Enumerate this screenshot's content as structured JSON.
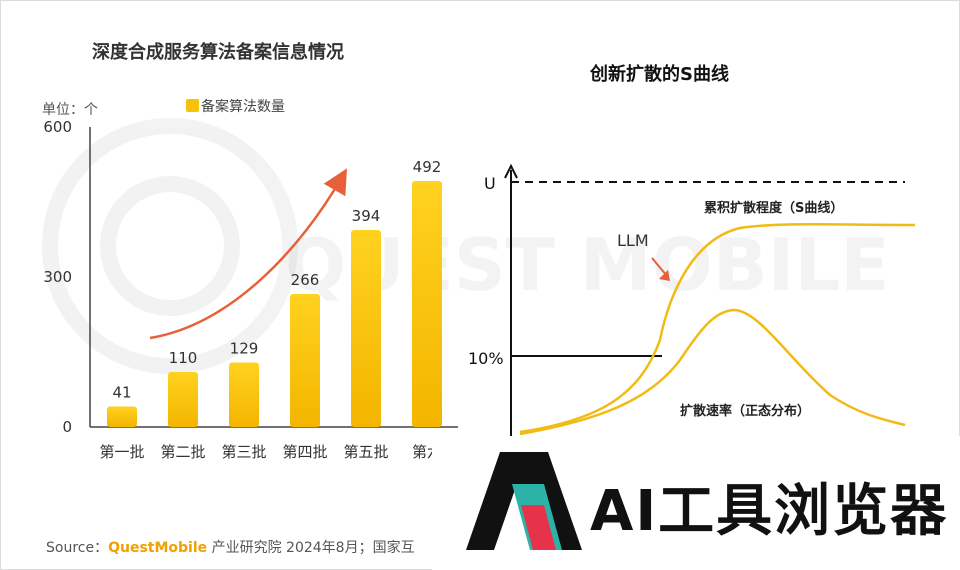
{
  "left_chart": {
    "title": "深度合成服务算法备案信息情况",
    "unit_label": "单位：个",
    "legend_label": "备案算法数量"
  },
  "right_chart": {
    "title": "创新扩散的S曲线",
    "u_label": "U",
    "ten_percent_label": "10%",
    "llm_label": "LLM",
    "curve_label_s": "累积扩散程度（S曲线）",
    "curve_label_bell": "扩散速率（正态分布）"
  },
  "watermark": "QUEST MOBILE",
  "footer": {
    "source_prefix": "Source：",
    "brand": "QuestMobile",
    "rest": " 产业研究院 2024年8月；国家互"
  },
  "logo": {
    "text": "AI工具浏览器"
  },
  "colors": {
    "bar": "#f6c30a",
    "arrow": "#e8603a",
    "curve": "#f2bb14",
    "logo_teal": "#2ab3a6",
    "logo_red": "#e6324b"
  },
  "chart_data": [
    {
      "type": "bar",
      "title": "深度合成服务算法备案信息情况",
      "categories": [
        "第一批",
        "第二批",
        "第三批",
        "第四批",
        "第五批",
        "第六"
      ],
      "series": [
        {
          "name": "备案算法数量",
          "values": [
            41,
            110,
            129,
            266,
            394,
            492
          ]
        }
      ],
      "ylim": [
        0,
        600
      ],
      "yticks": [
        0,
        300,
        600
      ],
      "ylabel": "单位：个",
      "xlabel": ""
    },
    {
      "type": "line",
      "title": "创新扩散的S曲线",
      "y_reference_labels": [
        "U",
        "10%"
      ],
      "series": [
        {
          "name": "累积扩散程度（S曲线）"
        },
        {
          "name": "扩散速率（正态分布）"
        }
      ],
      "annotation": "LLM"
    }
  ]
}
